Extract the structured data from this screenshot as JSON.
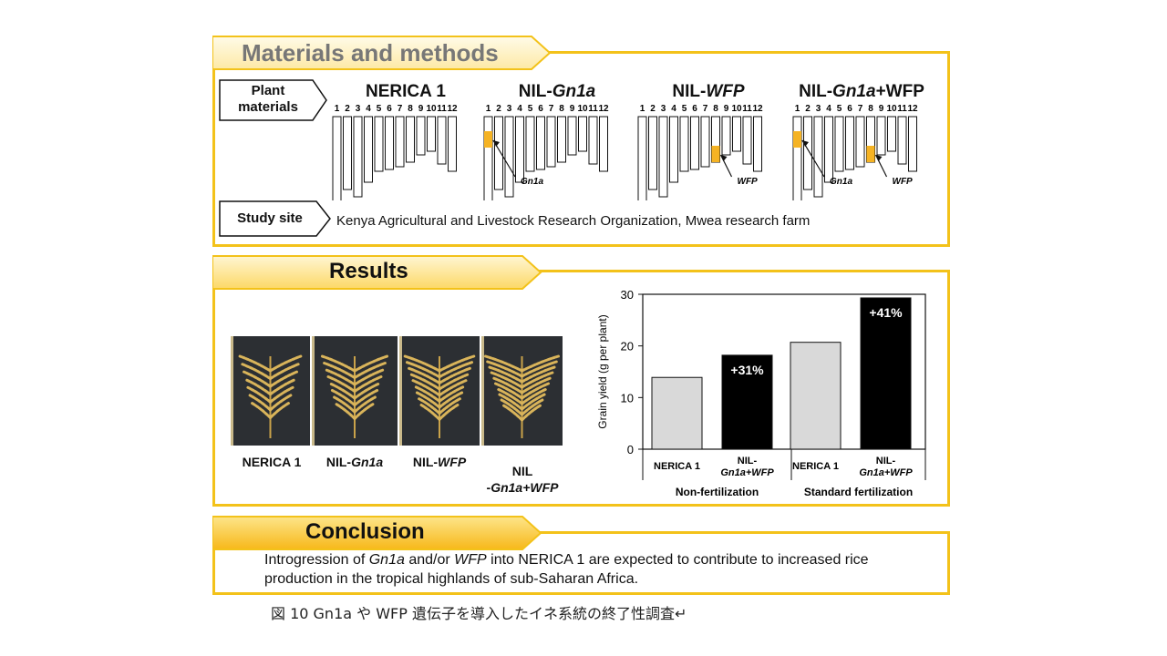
{
  "materials": {
    "header": "Materials and methods",
    "plant_materials_label": "Plant\nmaterials",
    "study_site_label": "Study site",
    "study_site_text": "Kenya Agricultural and Livestock Research Organization, Mwea research farm",
    "chromosome_numbers": [
      "1",
      "2",
      "3",
      "4",
      "5",
      "6",
      "7",
      "8",
      "9",
      "10",
      "11",
      "12"
    ],
    "varieties": [
      {
        "name_prefix": "NERICA 1",
        "name_italic": "",
        "name_suffix": "",
        "introgressions": []
      },
      {
        "name_prefix": "NIL-",
        "name_italic": "Gn1a",
        "name_suffix": "",
        "introgressions": [
          {
            "chromosome": 1,
            "gene": "Gn1a"
          }
        ]
      },
      {
        "name_prefix": "NIL-",
        "name_italic": "WFP",
        "name_suffix": "",
        "introgressions": [
          {
            "chromosome": 8,
            "gene": "WFP"
          }
        ]
      },
      {
        "name_prefix": "NIL-",
        "name_italic": "Gn1a",
        "name_suffix": "+WFP",
        "introgressions": [
          {
            "chromosome": 1,
            "gene": "Gn1a"
          },
          {
            "chromosome": 8,
            "gene": "WFP"
          }
        ]
      }
    ],
    "introgression_color": "#f5b324"
  },
  "results": {
    "header": "Results",
    "photo_labels": [
      {
        "prefix": "NERICA 1",
        "italic": "",
        "suffix": ""
      },
      {
        "prefix": "NIL-",
        "italic": "Gn1a",
        "suffix": ""
      },
      {
        "prefix": "NIL-",
        "italic": "WFP",
        "suffix": ""
      },
      {
        "prefix": "NIL\n-",
        "italic": "Gn1a+WFP",
        "suffix": ""
      }
    ]
  },
  "chart_data": {
    "type": "bar",
    "ylabel": "Grain yield (g per plant)",
    "ylim": [
      0,
      30
    ],
    "yticks": [
      0,
      10,
      20,
      30
    ],
    "groups": [
      "Non-fertilization",
      "Standard fertilization"
    ],
    "categories": [
      "NERICA 1",
      "NIL-Gn1a+WFP",
      "NERICA 1",
      "NIL-Gn1a+WFP"
    ],
    "category_lines": [
      {
        "line1": "NERICA 1",
        "line2": ""
      },
      {
        "line1": "NIL-",
        "line2": "Gn1a+WFP"
      },
      {
        "line1": "NERICA 1",
        "line2": ""
      },
      {
        "line1": "NIL-",
        "line2": "Gn1a+WFP"
      }
    ],
    "values": [
      13.9,
      18.2,
      20.7,
      29.3
    ],
    "bar_colors": [
      "#d9d9d9",
      "#000000",
      "#d9d9d9",
      "#000000"
    ],
    "bar_labels": [
      "",
      "+31%",
      "",
      "+41%"
    ],
    "grid": false
  },
  "conclusion": {
    "header": "Conclusion",
    "p1": "Introgression of ",
    "i1": "Gn1a",
    "p2": " and/or ",
    "i2": "WFP",
    "p3": " into NERICA 1 are expected to contribute to increased rice production in the tropical highlands of sub-Saharan Africa."
  },
  "caption": "図 10 Gn1a や WFP 遺伝子を導入したイネ系統の終了性調査↵"
}
